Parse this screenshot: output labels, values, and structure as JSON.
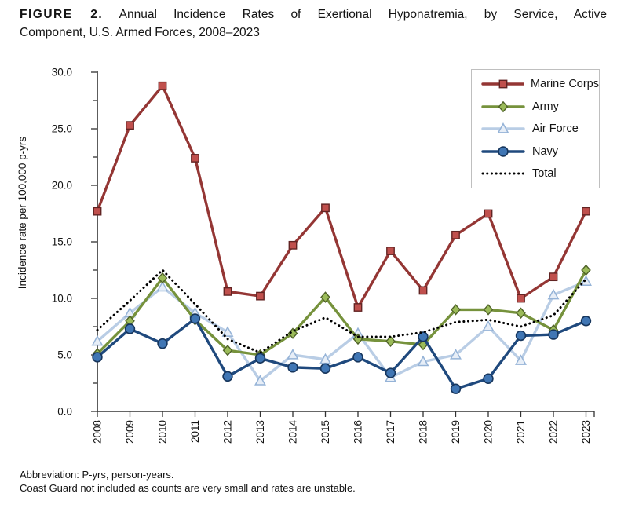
{
  "figure": {
    "label": "FIGURE 2.",
    "title_line1": " Annual Incidence Rates of Exertional Hyponatremia, by Service, Active",
    "title_line2": "Component, U.S. Armed Forces, 2008–2023"
  },
  "chart_data": {
    "type": "line",
    "title": "",
    "xlabel": "",
    "ylabel": "Incidence rate per 100,000 p-yrs",
    "ylim": [
      0,
      30
    ],
    "ytick_labels": [
      "0.0",
      "5.0",
      "10.0",
      "15.0",
      "20.0",
      "25.0",
      "30.0"
    ],
    "yminor_step": 2.5,
    "grid": false,
    "legend_position": "top-right",
    "axis_color": "#333333",
    "text_color": "#141414",
    "x": [
      2008,
      2009,
      2010,
      2011,
      2012,
      2013,
      2014,
      2015,
      2016,
      2017,
      2018,
      2019,
      2020,
      2021,
      2022,
      2023
    ],
    "series": [
      {
        "name": "Marine Corps",
        "marker": "square",
        "style": "solid",
        "line_color": "#943634",
        "marker_fill": "#C0504D",
        "marker_stroke": "#622423",
        "values": [
          17.7,
          25.3,
          28.8,
          22.4,
          10.6,
          10.2,
          14.7,
          18.0,
          9.2,
          14.2,
          10.7,
          15.6,
          17.5,
          10.0,
          11.9,
          17.7
        ]
      },
      {
        "name": "Army",
        "marker": "diamond",
        "style": "solid",
        "line_color": "#76923C",
        "marker_fill": "#9BBB59",
        "marker_stroke": "#4F6228",
        "values": [
          5.1,
          8.0,
          11.8,
          8.1,
          5.4,
          5.0,
          6.9,
          10.1,
          6.4,
          6.2,
          5.9,
          9.0,
          9.0,
          8.7,
          7.2,
          12.5
        ]
      },
      {
        "name": "Air Force",
        "marker": "triangle",
        "style": "solid",
        "line_color": "#B9CDE5",
        "marker_fill": "#E7EEF7",
        "marker_stroke": "#95B3D7",
        "values": [
          6.2,
          8.7,
          11.0,
          8.7,
          7.0,
          2.7,
          5.0,
          4.6,
          6.9,
          3.0,
          4.4,
          5.0,
          7.5,
          4.5,
          10.3,
          11.5
        ]
      },
      {
        "name": "Navy",
        "marker": "circle",
        "style": "solid",
        "line_color": "#1F497D",
        "marker_fill": "#4076B4",
        "marker_stroke": "#17365D",
        "values": [
          4.8,
          7.3,
          6.0,
          8.2,
          3.1,
          4.7,
          3.9,
          3.8,
          4.8,
          3.4,
          6.6,
          2.0,
          2.9,
          6.7,
          6.8,
          8.0
        ]
      },
      {
        "name": "Total",
        "marker": "none",
        "style": "dotted",
        "line_color": "#000000",
        "marker_fill": "#000000",
        "marker_stroke": "#000000",
        "values": [
          7.2,
          9.8,
          12.5,
          9.5,
          6.4,
          5.2,
          7.1,
          8.3,
          6.6,
          6.6,
          7.0,
          7.9,
          8.1,
          7.5,
          8.5,
          11.7
        ]
      }
    ],
    "draw_order": [
      2,
      1,
      3,
      4,
      0
    ]
  },
  "footer": {
    "line1": "Abbreviation: P-yrs, person-years.",
    "line2": "Coast Guard not included as counts are very small and rates are unstable."
  }
}
